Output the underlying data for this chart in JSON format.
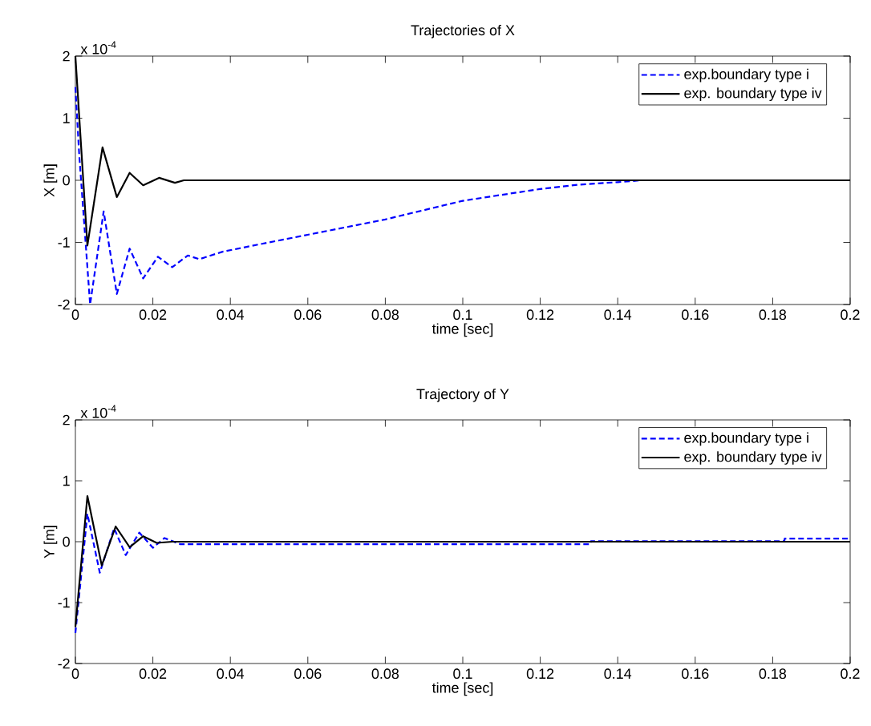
{
  "chart_data": [
    {
      "type": "line",
      "title": "Trajectories of X",
      "xlabel": "time [sec]",
      "ylabel": "X [m]",
      "annotations": [
        "x 10$^{-4}$"
      ],
      "xlim": [
        0,
        0.2
      ],
      "xticks": [
        0,
        0.02,
        0.04,
        0.06,
        0.08,
        0.1,
        0.12,
        0.14,
        0.16,
        0.18,
        0.2
      ],
      "ylim": [
        -2,
        2
      ],
      "yticks": [
        -2,
        -1,
        0,
        1,
        2
      ],
      "legend": "top right",
      "series": [
        {
          "name": "exp.boundary type i",
          "color": "#0000ff",
          "line_style": "dashed",
          "x": [
            0,
            0.001,
            0.0038,
            0.0073,
            0.0107,
            0.014,
            0.0175,
            0.0213,
            0.025,
            0.029,
            0.032,
            0.038,
            0.05,
            0.063,
            0.08,
            0.1,
            0.12,
            0.13,
            0.14,
            0.146,
            0.2
          ],
          "values": [
            1.5,
            0.4,
            -2.0,
            -0.5,
            -1.83,
            -1.1,
            -1.58,
            -1.23,
            -1.4,
            -1.21,
            -1.27,
            -1.15,
            -1.0,
            -0.84,
            -0.63,
            -0.33,
            -0.14,
            -0.07,
            -0.03,
            0,
            0
          ]
        },
        {
          "name": "exp. boundary type iv",
          "color": "#000000",
          "line_style": "solid",
          "x": [
            0,
            0.0031,
            0.007,
            0.0107,
            0.014,
            0.0175,
            0.0216,
            0.0257,
            0.028,
            0.2
          ],
          "values": [
            2.0,
            -1.05,
            0.53,
            -0.27,
            0.12,
            -0.08,
            0.04,
            -0.04,
            0,
            0
          ]
        }
      ]
    },
    {
      "type": "line",
      "title": "Trajectory of Y",
      "xlabel": "time [sec]",
      "ylabel": "Y [m]",
      "annotations": [
        "x 10$^{-4}$"
      ],
      "xlim": [
        0,
        0.2
      ],
      "xticks": [
        0,
        0.02,
        0.04,
        0.06,
        0.08,
        0.1,
        0.12,
        0.14,
        0.16,
        0.18,
        0.2
      ],
      "ylim": [
        -2,
        2
      ],
      "yticks": [
        -2,
        -1,
        0,
        1,
        2
      ],
      "legend": "top right",
      "series": [
        {
          "name": "exp.boundary type i",
          "color": "#0000ff",
          "line_style": "dashed",
          "x": [
            0,
            0.0031,
            0.0063,
            0.01,
            0.013,
            0.0165,
            0.02,
            0.023,
            0.027,
            0.133,
            0.1331,
            0.183,
            0.1831,
            0.2
          ],
          "values": [
            -1.5,
            0.46,
            -0.51,
            0.22,
            -0.22,
            0.15,
            -0.1,
            0.06,
            -0.04,
            -0.04,
            0.01,
            0.01,
            0.05,
            0.05
          ]
        },
        {
          "name": "exp. boundary type iv",
          "color": "#000000",
          "line_style": "solid",
          "x": [
            0,
            0.0031,
            0.0068,
            0.0104,
            0.014,
            0.0175,
            0.021,
            0.025,
            0.2
          ],
          "values": [
            -1.4,
            0.75,
            -0.39,
            0.25,
            -0.09,
            0.09,
            -0.02,
            0,
            0
          ]
        }
      ]
    }
  ]
}
